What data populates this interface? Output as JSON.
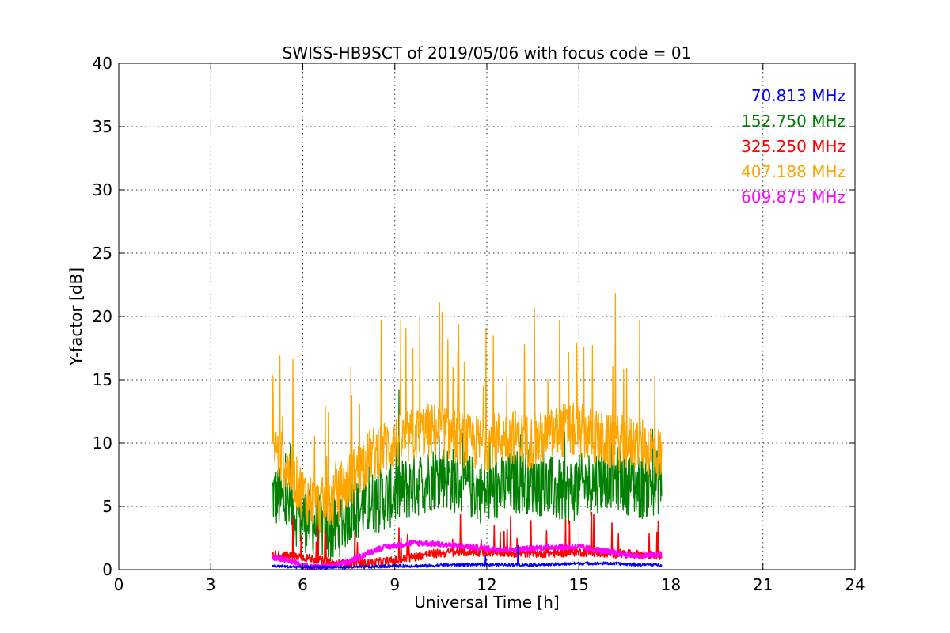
{
  "chart_data": {
    "type": "line",
    "title": "SWISS-HB9SCT of 2019/05/06 with focus code = 01",
    "xlabel": "Universal Time [h]",
    "ylabel": "Y-factor [dB]",
    "xlim": [
      0,
      24
    ],
    "ylim": [
      0,
      40
    ],
    "xticks": [
      0,
      3,
      6,
      9,
      12,
      15,
      18,
      21,
      24
    ],
    "yticks": [
      0,
      5,
      10,
      15,
      20,
      25,
      30,
      35,
      40
    ],
    "grid": true,
    "legend_position": "top-right",
    "series": [
      {
        "name": "70.813 MHz",
        "color": "#0000ff",
        "x": [
          5.0,
          6.0,
          7.0,
          8.0,
          9.0,
          10.0,
          11.0,
          12.0,
          13.0,
          14.0,
          15.0,
          16.0,
          17.0,
          17.7
        ],
        "y": [
          0.3,
          0.2,
          0.2,
          0.2,
          0.3,
          0.3,
          0.4,
          0.4,
          0.4,
          0.4,
          0.5,
          0.5,
          0.4,
          0.4
        ]
      },
      {
        "name": "152.750 MHz",
        "color": "#008000",
        "x": [
          5.0,
          5.5,
          6.0,
          6.5,
          7.0,
          7.5,
          8.0,
          8.5,
          9.0,
          9.5,
          10.0,
          10.5,
          11.0,
          11.5,
          12.0,
          12.5,
          13.0,
          13.5,
          14.0,
          14.5,
          15.0,
          15.5,
          16.0,
          16.5,
          17.0,
          17.7
        ],
        "y": [
          6.0,
          5.0,
          4.0,
          3.5,
          3.0,
          4.5,
          5.0,
          5.5,
          6.0,
          6.5,
          7.0,
          7.5,
          7.0,
          6.5,
          6.0,
          6.5,
          7.0,
          7.0,
          6.5,
          6.0,
          6.5,
          7.0,
          7.5,
          7.0,
          6.5,
          7.0
        ]
      },
      {
        "name": "325.250 MHz",
        "color": "#ff0000",
        "x": [
          5.0,
          6.0,
          7.0,
          8.0,
          9.0,
          10.0,
          11.0,
          12.0,
          13.0,
          14.0,
          15.0,
          16.0,
          17.0,
          17.7
        ],
        "y": [
          1.2,
          1.0,
          0.5,
          0.5,
          0.7,
          1.2,
          1.4,
          1.4,
          1.3,
          1.3,
          1.4,
          1.3,
          1.2,
          1.1
        ]
      },
      {
        "name": "407.188 MHz",
        "color": "#ffa500",
        "x": [
          5.0,
          5.5,
          6.0,
          6.5,
          7.0,
          7.5,
          8.0,
          8.5,
          9.0,
          9.5,
          10.0,
          10.5,
          11.0,
          11.5,
          12.0,
          12.5,
          13.0,
          13.5,
          14.0,
          14.5,
          15.0,
          15.5,
          16.0,
          16.5,
          17.0,
          17.7
        ],
        "y": [
          10.0,
          8.0,
          6.0,
          5.0,
          5.5,
          7.0,
          8.5,
          9.5,
          10.0,
          10.5,
          11.0,
          11.0,
          10.5,
          10.0,
          10.0,
          10.5,
          10.5,
          10.0,
          10.5,
          11.0,
          11.0,
          10.5,
          10.0,
          10.0,
          10.0,
          9.0
        ]
      },
      {
        "name": "609.875 MHz",
        "color": "#ff00ff",
        "x": [
          5.0,
          5.5,
          6.0,
          6.5,
          7.0,
          7.5,
          8.0,
          8.5,
          9.0,
          9.5,
          10.0,
          10.5,
          11.0,
          11.5,
          12.0,
          12.5,
          13.0,
          13.5,
          14.0,
          14.5,
          15.0,
          15.5,
          16.0,
          16.5,
          17.0,
          17.7
        ],
        "y": [
          1.0,
          0.8,
          0.3,
          0.2,
          0.3,
          0.6,
          1.2,
          1.7,
          1.9,
          2.1,
          2.1,
          2.0,
          1.9,
          1.8,
          1.7,
          1.6,
          1.6,
          1.7,
          1.8,
          1.8,
          1.8,
          1.6,
          1.4,
          1.2,
          1.1,
          1.2
        ]
      }
    ]
  }
}
